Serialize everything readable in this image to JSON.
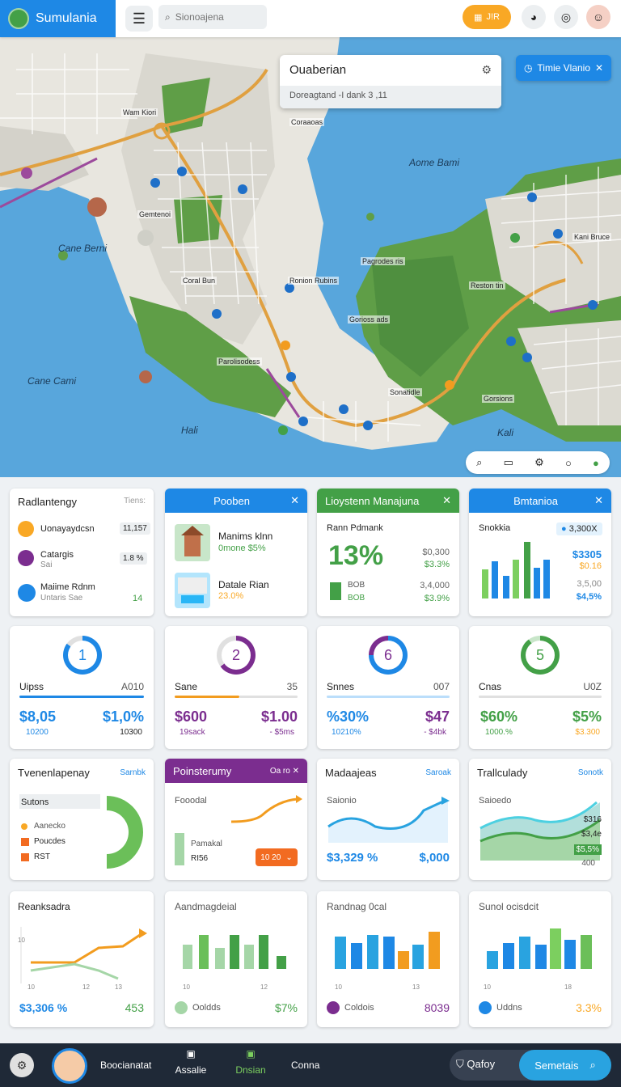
{
  "app": {
    "name": "Sumulania"
  },
  "header": {
    "search_placeholder": "Sionoajena",
    "pill_label": "J!R"
  },
  "map": {
    "popup": {
      "title": "Ouaberian",
      "subtitle": "Doreagtand -I dank 3 ,11"
    },
    "timeline_button": "Timie Vlanio",
    "labels": [
      "Aome Bami",
      "Cane Berni",
      "Cane Cami",
      "Hali",
      "Kali"
    ],
    "places": [
      "Wam Kiori",
      "Coraaoas",
      "Gemtenoi",
      "Pagrodes ris",
      "Ronion Rubins",
      "Coral Bun",
      "Reston tin",
      "Kani Bruce",
      "Gorioss ads",
      "Parolisodess",
      "Sonatidle",
      "Gorsions"
    ]
  },
  "cards": {
    "c1": {
      "title": "Radlantengy",
      "tag": "Tiens:",
      "items": [
        {
          "label": "Uonayaydcsn",
          "value": "11,157"
        },
        {
          "label": "Catargis",
          "sub": "Sai",
          "value": "1.8 %"
        },
        {
          "label": "Maiime Rdnm",
          "sub": "Untaris Sae",
          "value": "14"
        }
      ]
    },
    "c2": {
      "title": "Pooben",
      "items": [
        {
          "label": "Manims klnn",
          "sub": "0mone $5%"
        },
        {
          "label": "Datale Rian",
          "sub": "23.0%"
        }
      ]
    },
    "c3": {
      "title": "Lioystenn Manajuna",
      "sub": "Rann Pdmank",
      "big": "13%",
      "vals": [
        "$0,300",
        "$3.3%",
        "3,4,000",
        "$3.9%"
      ],
      "legend": "BOB",
      "legend2": "BOB"
    },
    "c4": {
      "title": "Bmtanioa",
      "sub": "Snokkia",
      "pill": "3,300X",
      "vals": [
        "$3305",
        "$0.16",
        "3,5,00",
        "$4,5%"
      ]
    },
    "r2": [
      {
        "ring": "1",
        "label": "Uipss",
        "right": "A010",
        "v1": "$8,05",
        "v2": "$1,0%",
        "s1": "10200",
        "s2": "10300"
      },
      {
        "ring": "2",
        "label": "Sane",
        "right": "35",
        "v1": "$600",
        "v2": "$1.00",
        "s1": "19sack",
        "s2": "- $5ms"
      },
      {
        "ring": "6",
        "label": "Snnes",
        "right": "007",
        "v1": "%30%",
        "v2": "$47",
        "s1": "10210%",
        "s2": "- $4bk"
      },
      {
        "ring": "5",
        "label": "Cnas",
        "right": "U0Z",
        "v1": "$60%",
        "v2": "$5%",
        "s1": "1000.%",
        "s2": "$3.300"
      }
    ],
    "r3": [
      {
        "title": "Tvenenlapenay",
        "tag": "Sarnbk",
        "sub": "Sutons",
        "legend": [
          "Aanecko",
          "Poucdes",
          "RST"
        ]
      },
      {
        "title": "Poinsterumy",
        "tag": "Oa ro",
        "sub": "Fooodal",
        "legend": "Pamakal",
        "value": "RI56",
        "dropdown": "10 20"
      },
      {
        "title": "Madaajeas",
        "tag": "Saroak",
        "sub": "Saionio",
        "v1": "$3,329 %",
        "v2": "$,000"
      },
      {
        "title": "Trallculady",
        "tag": "Sonotk",
        "sub": "Saioedo",
        "vals": [
          "$316",
          "$3,4e",
          "$5,5%"
        ],
        "v3": "400"
      }
    ],
    "r4": [
      {
        "title": "Reanksadra",
        "v1": "$3,306 %",
        "v2": "453",
        "axis": [
          "10",
          "10",
          "12",
          "13"
        ]
      },
      {
        "title": "Aandmagdeial",
        "icon_label": "Ooldds",
        "v2": "$7%",
        "axis": [
          "10",
          "12"
        ]
      },
      {
        "title": "Randnag 0cal",
        "icon_label": "Coldois",
        "v2": "8039",
        "axis": [
          "10",
          "13"
        ]
      },
      {
        "title": "Sunol ocisdcit",
        "icon_label": "Uddns",
        "v2": "3.3%",
        "axis": [
          "10",
          "18"
        ]
      }
    ]
  },
  "bottom_nav": {
    "profile_name": "Boocianatat",
    "items": [
      "Assalie",
      "Dnsian",
      "Conna"
    ],
    "btn1": "Qafoy",
    "btn2": "Semetais"
  },
  "colors": {
    "blue": "#1e88e5",
    "green": "#43a047",
    "purple": "#7b2d8f",
    "orange": "#fb8c00"
  }
}
